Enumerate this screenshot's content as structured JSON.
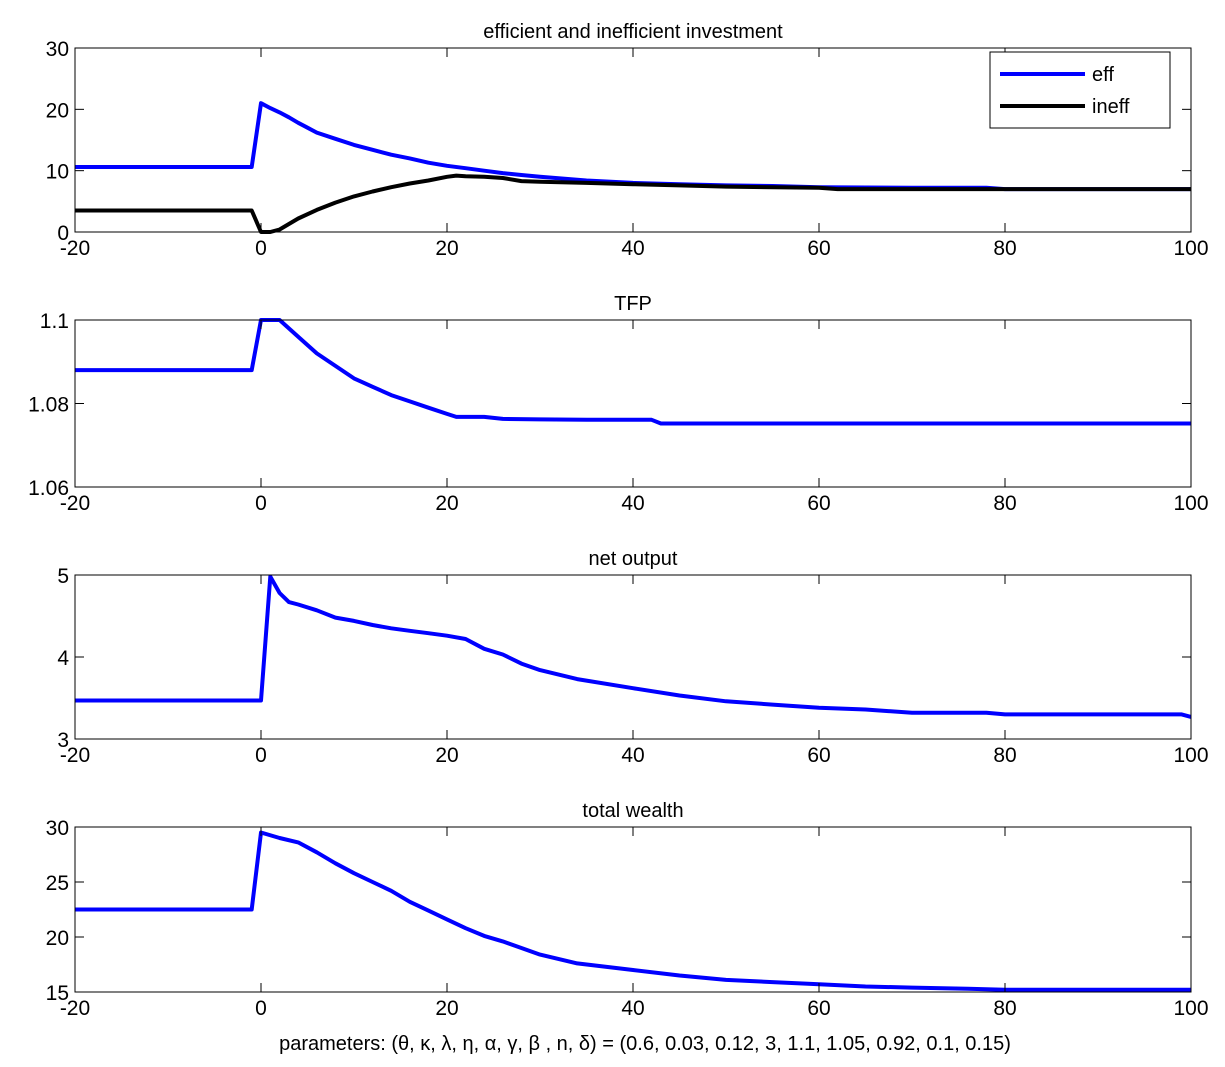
{
  "figure": {
    "footer": "parameters: (θ,  κ, λ, η, α, γ, β , n, δ) = (0.6, 0.03, 0.12, 3, 1.1, 1.05, 0.92, 0.1, 0.15)"
  },
  "chart_data": [
    {
      "type": "line",
      "title": "efficient and inefficient investment",
      "xlim": [
        -20,
        100
      ],
      "ylim": [
        0,
        30
      ],
      "xticks": [
        -20,
        0,
        20,
        40,
        60,
        80,
        100
      ],
      "yticks": [
        0,
        10,
        20,
        30
      ],
      "grid": false,
      "legend": "top-right",
      "series": [
        {
          "name": "eff",
          "color": "#0000ff",
          "x": [
            -20,
            -1,
            0,
            1,
            2,
            3,
            4,
            5,
            6,
            8,
            10,
            12,
            14,
            16,
            18,
            20,
            22,
            24,
            26,
            28,
            30,
            35,
            40,
            45,
            50,
            55,
            60,
            70,
            78,
            80,
            90,
            100
          ],
          "y": [
            10.6,
            10.6,
            21.0,
            20.2,
            19.5,
            18.7,
            17.8,
            17.0,
            16.2,
            15.2,
            14.2,
            13.4,
            12.6,
            12.0,
            11.3,
            10.8,
            10.4,
            10.0,
            9.6,
            9.3,
            9.0,
            8.4,
            8.0,
            7.8,
            7.6,
            7.5,
            7.3,
            7.2,
            7.2,
            7.0,
            7.0,
            7.0
          ]
        },
        {
          "name": "ineff",
          "color": "#000000",
          "x": [
            -20,
            -1,
            0,
            1,
            2,
            3,
            4,
            6,
            8,
            10,
            12,
            14,
            16,
            18,
            20,
            21,
            22,
            24,
            26,
            28,
            30,
            35,
            40,
            45,
            50,
            60,
            62,
            70,
            80,
            90,
            100
          ],
          "y": [
            3.5,
            3.5,
            0.0,
            0.0,
            0.4,
            1.3,
            2.2,
            3.6,
            4.8,
            5.8,
            6.6,
            7.3,
            7.9,
            8.4,
            9.0,
            9.2,
            9.1,
            9.0,
            8.8,
            8.3,
            8.2,
            8.0,
            7.8,
            7.6,
            7.4,
            7.2,
            7.0,
            7.0,
            7.0,
            7.0,
            7.0
          ]
        }
      ]
    },
    {
      "type": "line",
      "title": "TFP",
      "xlim": [
        -20,
        100
      ],
      "ylim": [
        1.06,
        1.1
      ],
      "xticks": [
        -20,
        0,
        20,
        40,
        60,
        80,
        100
      ],
      "yticks": [
        1.06,
        1.08,
        1.1
      ],
      "grid": false,
      "series": [
        {
          "color": "#0000ff",
          "x": [
            -20,
            -1,
            0,
            2,
            4,
            6,
            8,
            10,
            12,
            14,
            16,
            18,
            20,
            21,
            24,
            26,
            30,
            35,
            42,
            43,
            60,
            80,
            100
          ],
          "y": [
            1.088,
            1.088,
            1.1,
            1.1,
            1.096,
            1.092,
            1.089,
            1.086,
            1.084,
            1.082,
            1.0805,
            1.079,
            1.0775,
            1.0768,
            1.0768,
            1.0763,
            1.0762,
            1.0761,
            1.0761,
            1.0752,
            1.0752,
            1.0752,
            1.0752
          ]
        }
      ]
    },
    {
      "type": "line",
      "title": "net output",
      "xlim": [
        -20,
        100
      ],
      "ylim": [
        3,
        5
      ],
      "xticks": [
        -20,
        0,
        20,
        40,
        60,
        80,
        100
      ],
      "yticks": [
        3,
        4,
        5
      ],
      "grid": false,
      "series": [
        {
          "color": "#0000ff",
          "x": [
            -20,
            0,
            1,
            2,
            3,
            4,
            6,
            8,
            10,
            12,
            14,
            16,
            18,
            20,
            22,
            24,
            26,
            28,
            30,
            34,
            40,
            45,
            50,
            55,
            60,
            65,
            70,
            78,
            80,
            90,
            99,
            100
          ],
          "y": [
            3.47,
            3.47,
            4.98,
            4.78,
            4.67,
            4.64,
            4.57,
            4.48,
            4.44,
            4.39,
            4.35,
            4.32,
            4.29,
            4.26,
            4.22,
            4.1,
            4.03,
            3.92,
            3.84,
            3.73,
            3.62,
            3.53,
            3.46,
            3.42,
            3.38,
            3.36,
            3.32,
            3.32,
            3.3,
            3.3,
            3.3,
            3.27
          ]
        }
      ]
    },
    {
      "type": "line",
      "title": "total wealth",
      "xlim": [
        -20,
        100
      ],
      "ylim": [
        15,
        30
      ],
      "xticks": [
        -20,
        0,
        20,
        40,
        60,
        80,
        100
      ],
      "yticks": [
        15,
        20,
        25,
        30
      ],
      "grid": false,
      "series": [
        {
          "color": "#0000ff",
          "x": [
            -20,
            -1,
            0,
            2,
            4,
            6,
            8,
            10,
            12,
            14,
            16,
            18,
            20,
            22,
            24,
            26,
            28,
            30,
            34,
            40,
            45,
            50,
            55,
            60,
            65,
            70,
            76,
            80,
            90,
            100
          ],
          "y": [
            22.5,
            22.5,
            29.5,
            29.0,
            28.6,
            27.7,
            26.7,
            25.8,
            25.0,
            24.2,
            23.2,
            22.4,
            21.6,
            20.8,
            20.1,
            19.6,
            19.0,
            18.4,
            17.6,
            17.0,
            16.5,
            16.1,
            15.9,
            15.7,
            15.5,
            15.4,
            15.3,
            15.2,
            15.2,
            15.2
          ]
        }
      ]
    }
  ]
}
